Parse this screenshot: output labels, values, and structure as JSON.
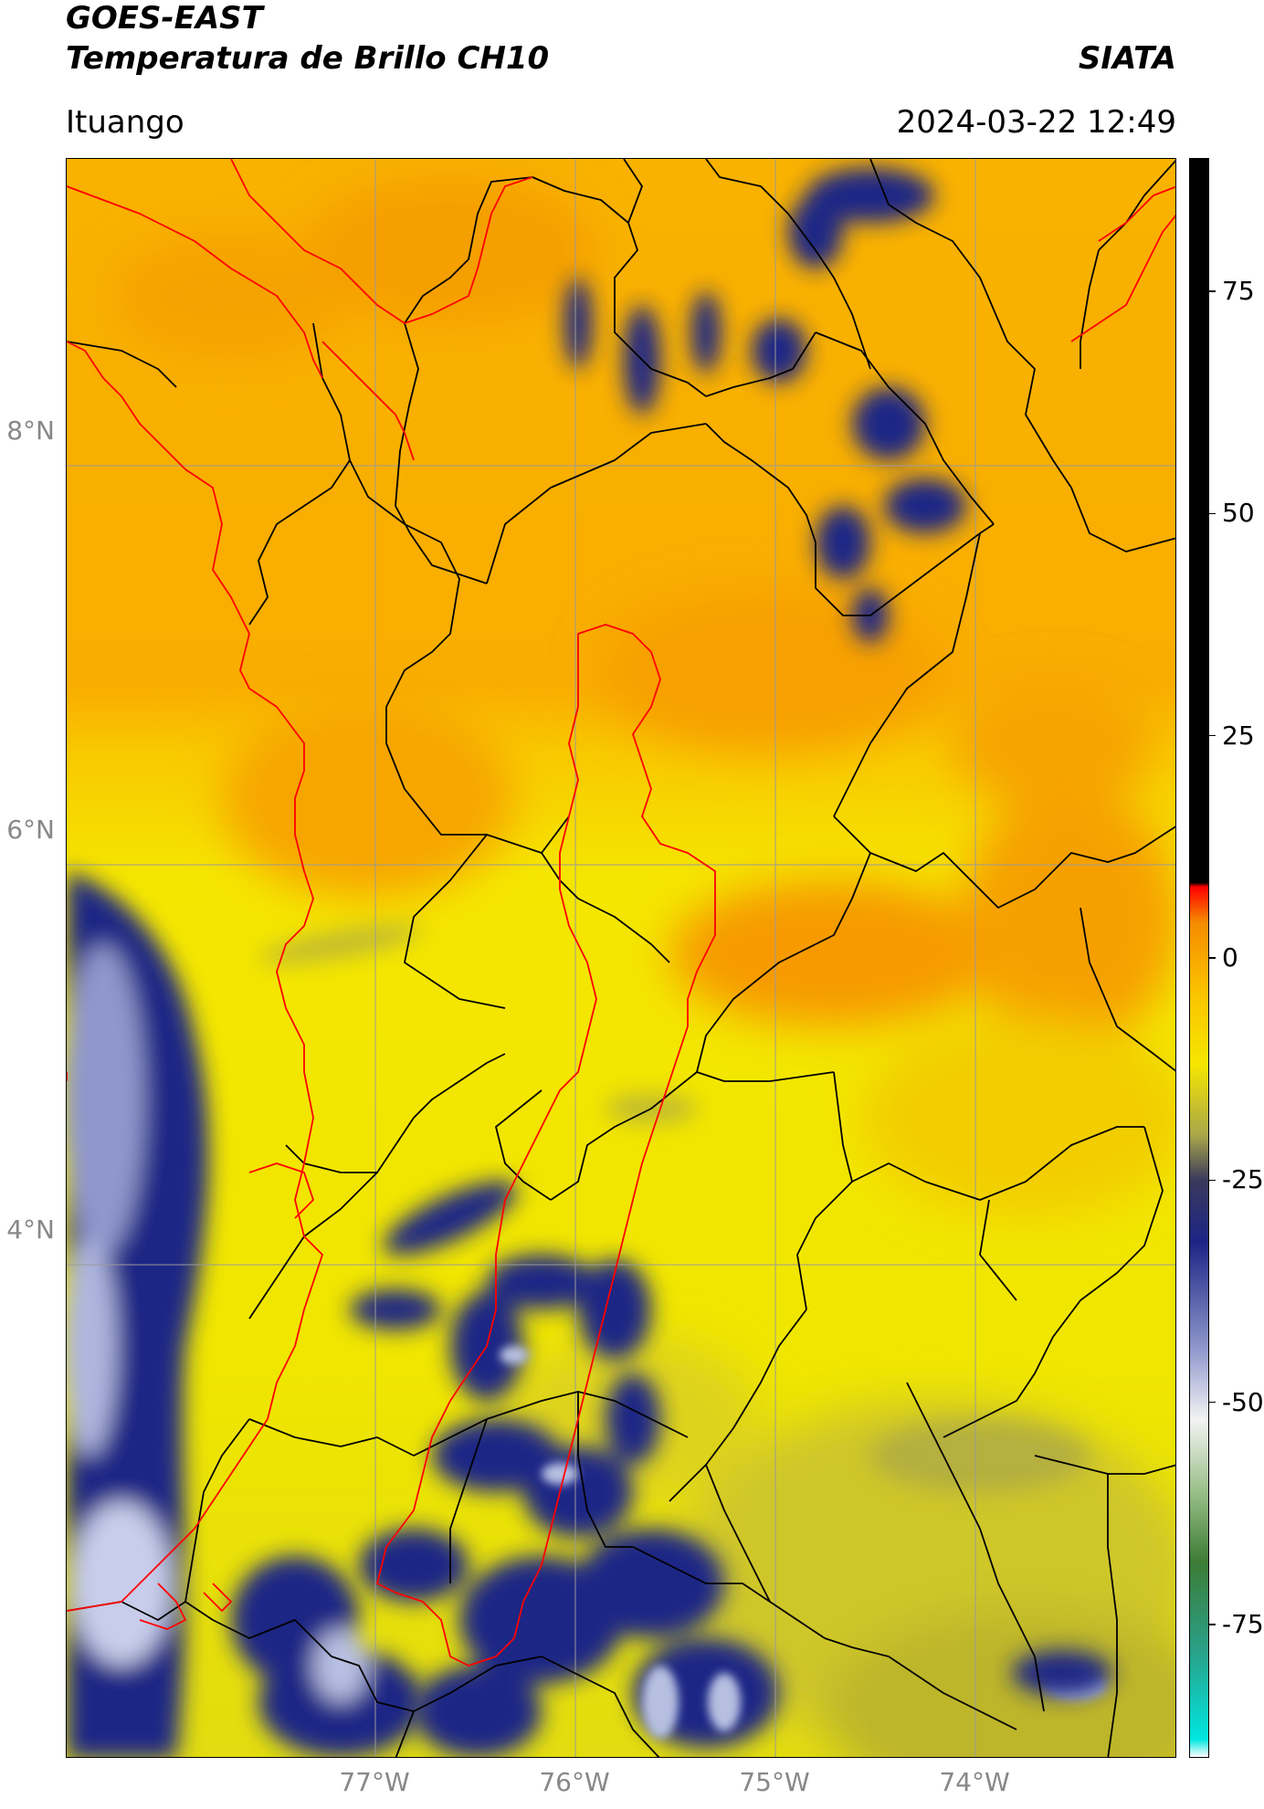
{
  "header": {
    "satellite": "GOES-EAST",
    "product": "Temperatura de Brillo CH10",
    "organization": "SIATA",
    "region": "Ituango",
    "datetime": "2024-03-22 12:49"
  },
  "map": {
    "lat_ticks": [
      "8°N",
      "6°N",
      "4°N"
    ],
    "lon_ticks": [
      "77°W",
      "76°W",
      "75°W",
      "74°W"
    ],
    "colors": {
      "warm_orange": "#f7a400",
      "mid_orange": "#fbbd00",
      "yellow": "#f5e600",
      "olive": "#b7b42a",
      "navy": "#1c2585",
      "light_blue": "#b6bfe0",
      "coast": "#ff0000",
      "borders": "#000000",
      "gridline": "#9a9a9a"
    }
  },
  "colorbar": {
    "ticks": [
      "75",
      "50",
      "25",
      "0",
      "-25",
      "-50",
      "-75"
    ],
    "tick_values": [
      75,
      50,
      25,
      0,
      -25,
      -50,
      -75
    ],
    "range": [
      -90,
      90
    ],
    "stops": [
      {
        "value": -90,
        "color": "#ffffff"
      },
      {
        "value": -88,
        "color": "#00e6e0"
      },
      {
        "value": -78,
        "color": "#2aa088"
      },
      {
        "value": -68,
        "color": "#3d7c36"
      },
      {
        "value": -60,
        "color": "#9bc08a"
      },
      {
        "value": -52,
        "color": "#f3f3f3"
      },
      {
        "value": -44,
        "color": "#8f97cc"
      },
      {
        "value": -32,
        "color": "#1c2585"
      },
      {
        "value": -25,
        "color": "#3a3a5c"
      },
      {
        "value": -20,
        "color": "#a9a64a"
      },
      {
        "value": -12,
        "color": "#f5e600"
      },
      {
        "value": -4,
        "color": "#fbc300"
      },
      {
        "value": 4,
        "color": "#f58c00"
      },
      {
        "value": 8,
        "color": "#ff0000"
      },
      {
        "value": 8.5,
        "color": "#000000"
      },
      {
        "value": 90,
        "color": "#000000"
      }
    ]
  }
}
